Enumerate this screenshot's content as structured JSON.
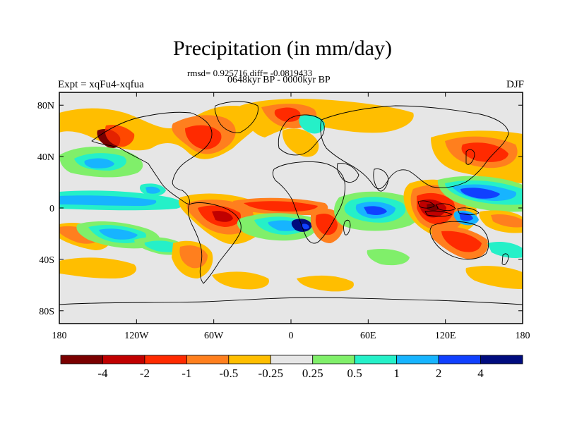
{
  "header": {
    "title": "Precipitation (in mm/day)",
    "stats": "rmsd= 0.925716 diff= -0.0819433",
    "period": "0648kyr BP - 0000kyr BP",
    "experiment": "Expt = xqFu4-xqfua",
    "season": "DJF"
  },
  "axes": {
    "lon_ticks": [
      "180",
      "120W",
      "60W",
      "0",
      "60E",
      "120E",
      "180"
    ],
    "lat_ticks": [
      "80N",
      "40N",
      "0",
      "40S",
      "80S"
    ],
    "lon_range": [
      -180,
      180
    ],
    "lat_range": [
      -90,
      90
    ]
  },
  "colorbar": {
    "labels": [
      "-4",
      "-2",
      "-1",
      "-0.5",
      "-0.25",
      "0.25",
      "0.5",
      "1",
      "2",
      "4"
    ],
    "colors": [
      "#7a0000",
      "#c00000",
      "#ff2a00",
      "#ff7f1e",
      "#ffbe00",
      "#e6e6e6",
      "#80ef6a",
      "#25f0c8",
      "#17b4ff",
      "#1040ff",
      "#000c7e"
    ]
  },
  "map": {
    "background_color": "#e6e6e6",
    "coastline_color": "#000000"
  }
}
